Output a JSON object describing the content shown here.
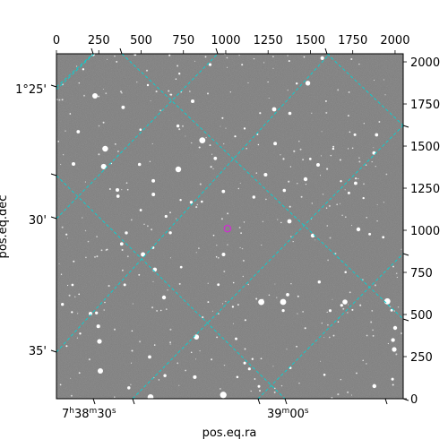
{
  "x_pixel_ticks": [
    "0",
    "250",
    "500",
    "750",
    "1000",
    "1250",
    "1500",
    "1750",
    "2000"
  ],
  "y_pixel_ticks": [
    "0",
    "250",
    "500",
    "750",
    "1000",
    "1250",
    "1500",
    "1750",
    "2000"
  ],
  "dec_ticks": [
    "1°25'",
    "30'",
    "35'"
  ],
  "ra_ticks": [
    {
      "hour": "7",
      "hour_unit": "h",
      "min": "38",
      "min_unit": "m",
      "sec": "30",
      "sec_unit": "s"
    },
    {
      "min": "39",
      "min_unit": "m",
      "sec": "00",
      "sec_unit": "s"
    }
  ],
  "xlabel": "pos.eq.ra",
  "ylabel": "pos.eq.dec",
  "colors": {
    "background": "#7a7a7a",
    "grid": "#00d5d5",
    "marker": "#cc33cc",
    "frame": "#000000"
  },
  "marker_center_pixel": [
    1010,
    1010
  ],
  "image_pixel_range": {
    "x": [
      0,
      2048
    ],
    "y": [
      0,
      2048
    ]
  }
}
